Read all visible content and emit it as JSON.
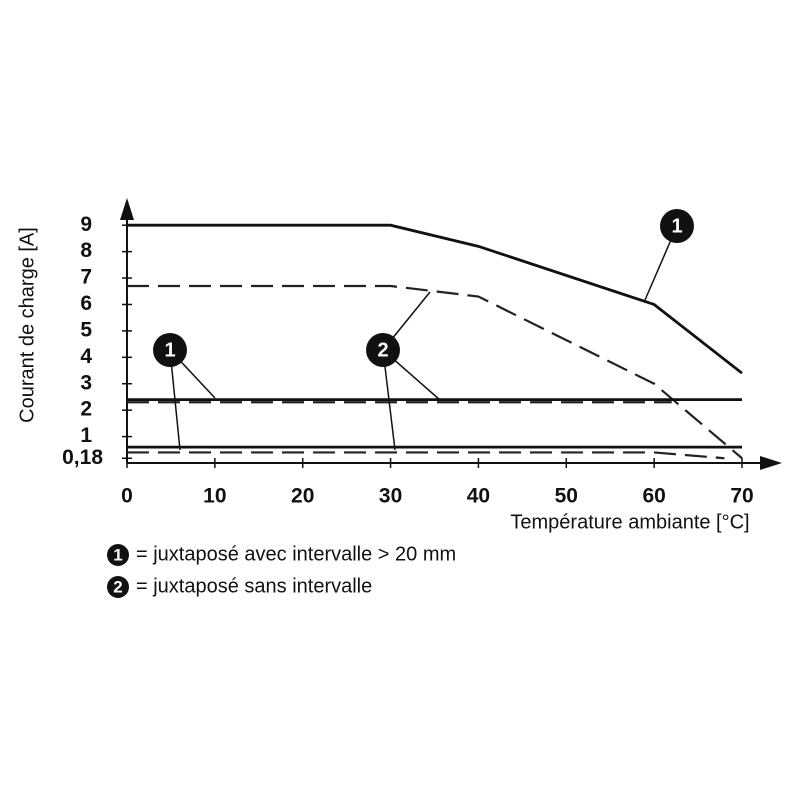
{
  "chart_data": {
    "type": "line",
    "y_label": "Courant de charge [A]",
    "x_label": "Température ambiante [°C]",
    "xlim": [
      0,
      70
    ],
    "ylim": [
      0,
      9.5
    ],
    "xticks": [
      0,
      10,
      20,
      30,
      40,
      50,
      60,
      70
    ],
    "yticks": [
      {
        "value": 0.18,
        "label": "0,18"
      },
      1,
      2,
      3,
      4,
      5,
      6,
      7,
      8,
      9
    ],
    "series": [
      {
        "x": [
          0,
          30,
          40,
          60,
          70
        ],
        "values": [
          9,
          9,
          8.2,
          6,
          3.4
        ],
        "color": "#111111",
        "style": "solid"
      },
      {
        "x": [
          0,
          30,
          40,
          60,
          70
        ],
        "values": [
          6.7,
          6.7,
          6.3,
          3,
          0.18
        ],
        "color": "#222222",
        "style": "dashed"
      },
      {
        "x": [
          0,
          70
        ],
        "values": [
          2.4,
          2.4
        ],
        "color": "#111111",
        "style": "solid"
      },
      {
        "x": [
          0,
          62
        ],
        "values": [
          2.3,
          2.3
        ],
        "color": "#222222",
        "style": "dashed"
      },
      {
        "x": [
          0,
          70
        ],
        "values": [
          0.6,
          0.6
        ],
        "color": "#111111",
        "style": "solid"
      },
      {
        "x": [
          0,
          60,
          68
        ],
        "values": [
          0.4,
          0.4,
          0.18
        ],
        "color": "#222222",
        "style": "dashed"
      }
    ],
    "callouts": [
      "1",
      "2",
      "1"
    ],
    "legend_items": [
      {
        "marker": "1",
        "label": "= juxtaposé avec intervalle > 20 mm"
      },
      {
        "marker": "2",
        "label": "= juxtaposé sans intervalle"
      }
    ]
  }
}
